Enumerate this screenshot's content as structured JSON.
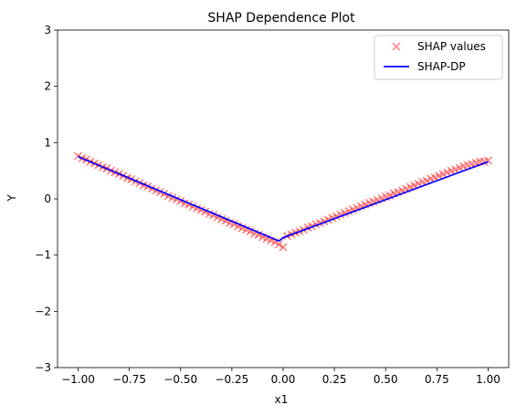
{
  "chart_data": {
    "type": "scatter",
    "title": "SHAP Dependence Plot",
    "xlabel": "x1",
    "ylabel": "Y",
    "xlim": [
      -1.1,
      1.1
    ],
    "ylim": [
      -3,
      3
    ],
    "xticks": [
      -1.0,
      -0.75,
      -0.5,
      -0.25,
      0.0,
      0.25,
      0.5,
      0.75,
      1.0
    ],
    "xtick_labels": [
      "−1.00",
      "−0.75",
      "−0.50",
      "−0.25",
      "0.00",
      "0.25",
      "0.50",
      "0.75",
      "1.00"
    ],
    "yticks": [
      -3,
      -2,
      -1,
      0,
      1,
      2,
      3
    ],
    "ytick_labels": [
      "−3",
      "−2",
      "−1",
      "0",
      "1",
      "2",
      "3"
    ],
    "grid": false,
    "legend_position": "top-right",
    "series": [
      {
        "name": "SHAP values",
        "kind": "markers",
        "marker": "x",
        "color": "#ff0000",
        "opacity": 0.5,
        "x": [
          -1.0,
          -0.98,
          -0.96,
          -0.94,
          -0.92,
          -0.9,
          -0.88,
          -0.86,
          -0.84,
          -0.82,
          -0.8,
          -0.78,
          -0.76,
          -0.74,
          -0.72,
          -0.7,
          -0.68,
          -0.66,
          -0.64,
          -0.62,
          -0.6,
          -0.58,
          -0.56,
          -0.54,
          -0.52,
          -0.5,
          -0.48,
          -0.46,
          -0.44,
          -0.42,
          -0.4,
          -0.38,
          -0.36,
          -0.34,
          -0.32,
          -0.3,
          -0.28,
          -0.26,
          -0.24,
          -0.22,
          -0.2,
          -0.18,
          -0.16,
          -0.14,
          -0.12,
          -0.1,
          -0.08,
          -0.06,
          -0.04,
          -0.02,
          0.0,
          0.02,
          0.04,
          0.06,
          0.08,
          0.1,
          0.12,
          0.14,
          0.16,
          0.18,
          0.2,
          0.22,
          0.24,
          0.26,
          0.28,
          0.3,
          0.32,
          0.34,
          0.36,
          0.38,
          0.4,
          0.42,
          0.44,
          0.46,
          0.48,
          0.5,
          0.52,
          0.54,
          0.56,
          0.58,
          0.6,
          0.62,
          0.64,
          0.66,
          0.68,
          0.7,
          0.72,
          0.74,
          0.76,
          0.78,
          0.8,
          0.82,
          0.84,
          0.86,
          0.88,
          0.9,
          0.92,
          0.94,
          0.96,
          0.98,
          1.0
        ],
        "y": [
          0.76,
          0.72,
          0.7,
          0.66,
          0.63,
          0.6,
          0.56,
          0.54,
          0.5,
          0.47,
          0.44,
          0.41,
          0.37,
          0.35,
          0.31,
          0.28,
          0.24,
          0.22,
          0.18,
          0.15,
          0.12,
          0.09,
          0.05,
          0.02,
          -0.01,
          -0.04,
          -0.08,
          -0.1,
          -0.14,
          -0.17,
          -0.2,
          -0.23,
          -0.27,
          -0.29,
          -0.33,
          -0.36,
          -0.39,
          -0.43,
          -0.45,
          -0.49,
          -0.52,
          -0.55,
          -0.58,
          -0.62,
          -0.64,
          -0.68,
          -0.71,
          -0.74,
          -0.77,
          -0.81,
          -0.86,
          -0.66,
          -0.63,
          -0.6,
          -0.58,
          -0.55,
          -0.51,
          -0.49,
          -0.45,
          -0.43,
          -0.4,
          -0.37,
          -0.34,
          -0.31,
          -0.28,
          -0.25,
          -0.22,
          -0.19,
          -0.16,
          -0.13,
          -0.1,
          -0.07,
          -0.05,
          -0.02,
          0.01,
          0.04,
          0.06,
          0.1,
          0.12,
          0.15,
          0.18,
          0.21,
          0.24,
          0.27,
          0.3,
          0.32,
          0.36,
          0.38,
          0.41,
          0.44,
          0.47,
          0.5,
          0.52,
          0.55,
          0.58,
          0.6,
          0.62,
          0.64,
          0.66,
          0.66,
          0.68
        ]
      },
      {
        "name": "SHAP-DP",
        "kind": "line",
        "color": "#0000ff",
        "x": [
          -1.0,
          -0.02,
          0.0,
          1.0
        ],
        "y": [
          0.75,
          -0.75,
          -0.69,
          0.66
        ]
      }
    ]
  }
}
